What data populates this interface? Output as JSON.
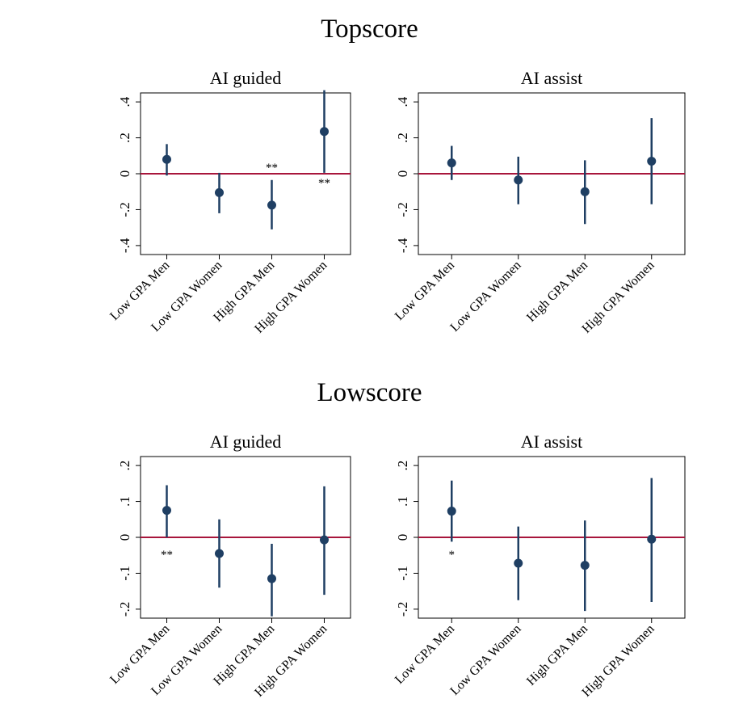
{
  "sections": [
    {
      "title": "Topscore"
    },
    {
      "title": "Lowscore"
    }
  ],
  "chart_data": [
    {
      "type": "coefplot",
      "section": "Topscore",
      "title": "AI guided",
      "categories": [
        "Low GPA Men",
        "Low GPA Women",
        "High GPA Men",
        "High GPA Women"
      ],
      "estimates": [
        0.08,
        -0.105,
        -0.175,
        0.235
      ],
      "ci_low": [
        -0.01,
        -0.22,
        -0.31,
        0.005
      ],
      "ci_high": [
        0.165,
        0.005,
        -0.035,
        0.465
      ],
      "ylim": [
        -0.45,
        0.45
      ],
      "yticks": [
        -0.4,
        -0.2,
        0,
        0.2,
        0.4
      ],
      "ytick_labels": [
        "-.4",
        "-.2",
        "0",
        ".2",
        ".4"
      ],
      "reference_line": 0,
      "annotations": [
        {
          "category": "High GPA Men",
          "text": "**",
          "y": 0.04
        },
        {
          "category": "High GPA Women",
          "text": "**",
          "y": -0.045
        }
      ],
      "colors": {
        "marker": "#1f3f63",
        "reference": "#a8163c",
        "annotation": "#d63a32"
      }
    },
    {
      "type": "coefplot",
      "section": "Topscore",
      "title": "AI assist",
      "categories": [
        "Low GPA Men",
        "Low GPA Women",
        "High GPA Men",
        "High GPA Women"
      ],
      "estimates": [
        0.06,
        -0.035,
        -0.1,
        0.07
      ],
      "ci_low": [
        -0.035,
        -0.17,
        -0.28,
        -0.17
      ],
      "ci_high": [
        0.155,
        0.095,
        0.075,
        0.31
      ],
      "ylim": [
        -0.45,
        0.45
      ],
      "yticks": [
        -0.4,
        -0.2,
        0,
        0.2,
        0.4
      ],
      "ytick_labels": [
        "-.4",
        "-.2",
        "0",
        ".2",
        ".4"
      ],
      "reference_line": 0,
      "annotations": [],
      "colors": {
        "marker": "#1f3f63",
        "reference": "#a8163c",
        "annotation": "#d63a32"
      }
    },
    {
      "type": "coefplot",
      "section": "Lowscore",
      "title": "AI guided",
      "categories": [
        "Low GPA Men",
        "Low GPA Women",
        "High GPA Men",
        "High GPA Women"
      ],
      "estimates": [
        0.075,
        -0.045,
        -0.115,
        -0.007
      ],
      "ci_low": [
        0.0,
        -0.14,
        -0.22,
        -0.16
      ],
      "ci_high": [
        0.145,
        0.05,
        -0.018,
        0.142
      ],
      "ylim": [
        -0.225,
        0.225
      ],
      "yticks": [
        -0.2,
        -0.1,
        0,
        0.1,
        0.2
      ],
      "ytick_labels": [
        "-.2",
        "-.1",
        "0",
        ".1",
        ".2"
      ],
      "reference_line": 0,
      "annotations": [
        {
          "category": "Low GPA Men",
          "text": "**",
          "y": -0.045
        }
      ],
      "colors": {
        "marker": "#1f3f63",
        "reference": "#a8163c",
        "annotation": "#d63a32"
      }
    },
    {
      "type": "coefplot",
      "section": "Lowscore",
      "title": "AI assist",
      "categories": [
        "Low GPA Men",
        "Low GPA Women",
        "High GPA Men",
        "High GPA Women"
      ],
      "estimates": [
        0.073,
        -0.072,
        -0.078,
        -0.005
      ],
      "ci_low": [
        -0.012,
        -0.175,
        -0.205,
        -0.18
      ],
      "ci_high": [
        0.158,
        0.03,
        0.047,
        0.165
      ],
      "ylim": [
        -0.225,
        0.225
      ],
      "yticks": [
        -0.2,
        -0.1,
        0,
        0.1,
        0.2
      ],
      "ytick_labels": [
        "-.2",
        "-.1",
        "0",
        ".1",
        ".2"
      ],
      "reference_line": 0,
      "annotations": [
        {
          "category": "Low GPA Men",
          "text": "*",
          "y": -0.045
        }
      ],
      "colors": {
        "marker": "#1f3f63",
        "reference": "#a8163c",
        "annotation": "#d63a32"
      }
    }
  ]
}
